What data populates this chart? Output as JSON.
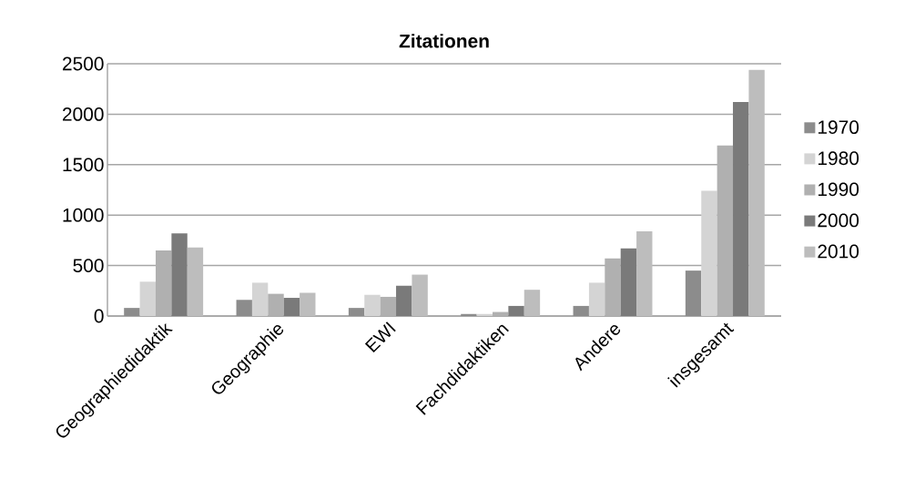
{
  "chart_data": {
    "type": "bar",
    "title": "Zitationen",
    "categories": [
      "Geographiedidaktik",
      "Geographie",
      "EWI",
      "Fachdidaktiken",
      "Andere",
      "insgesamt"
    ],
    "series": [
      {
        "name": "1970",
        "color": "#8c8c8c",
        "values": [
          80,
          160,
          80,
          20,
          100,
          450
        ]
      },
      {
        "name": "1980",
        "color": "#d4d4d4",
        "values": [
          340,
          330,
          210,
          20,
          330,
          1240
        ]
      },
      {
        "name": "1990",
        "color": "#b0b0b0",
        "values": [
          650,
          220,
          190,
          40,
          570,
          1690
        ]
      },
      {
        "name": "2000",
        "color": "#7a7a7a",
        "values": [
          820,
          180,
          300,
          100,
          670,
          2120
        ]
      },
      {
        "name": "2010",
        "color": "#bdbdbd",
        "values": [
          680,
          230,
          410,
          260,
          840,
          2440
        ]
      }
    ],
    "ylim": [
      0,
      2500
    ],
    "yticks": [
      0,
      500,
      1000,
      1500,
      2000,
      2500
    ],
    "grid": "y",
    "legend": "right"
  }
}
